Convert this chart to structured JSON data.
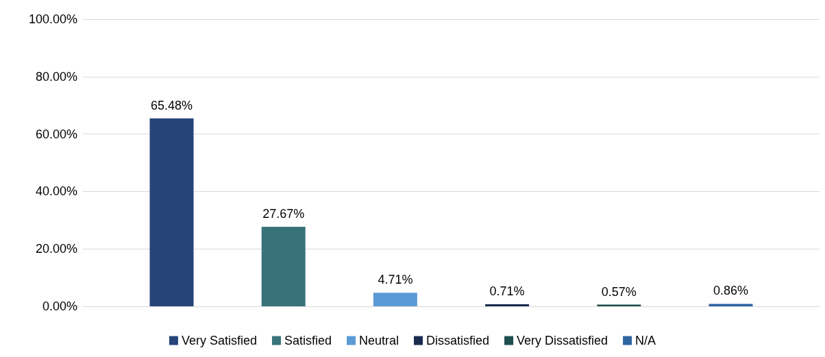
{
  "chart_data": {
    "type": "bar",
    "categories": [
      null
    ],
    "series": [
      {
        "name": "Very Satisfied",
        "color": "#264478",
        "values": [
          65.48
        ],
        "value_labels": [
          "65.48%"
        ]
      },
      {
        "name": "Satisfied",
        "color": "#38737a",
        "values": [
          27.67
        ],
        "value_labels": [
          "27.67%"
        ]
      },
      {
        "name": "Neutral",
        "color": "#5b9bd5",
        "values": [
          4.71
        ],
        "value_labels": [
          "4.71%"
        ]
      },
      {
        "name": "Dissatisfied",
        "color": "#1a2a4f",
        "values": [
          0.71
        ],
        "value_labels": [
          "0.71%"
        ]
      },
      {
        "name": "Very Dissatisfied",
        "color": "#1e4e4f",
        "values": [
          0.57
        ],
        "value_labels": [
          "0.57%"
        ]
      },
      {
        "name": "N/A",
        "color": "#2e64a0",
        "values": [
          0.86
        ],
        "value_labels": [
          "0.86%"
        ]
      }
    ],
    "ylim": [
      0,
      100
    ],
    "yticks": [
      {
        "value": 0,
        "label": "0.00%"
      },
      {
        "value": 20,
        "label": "20.00%"
      },
      {
        "value": 40,
        "label": "40.00%"
      },
      {
        "value": 60,
        "label": "60.00%"
      },
      {
        "value": 80,
        "label": "80.00%"
      },
      {
        "value": 100,
        "label": "100.00%"
      }
    ],
    "grid": "y",
    "legend": "bottom"
  }
}
